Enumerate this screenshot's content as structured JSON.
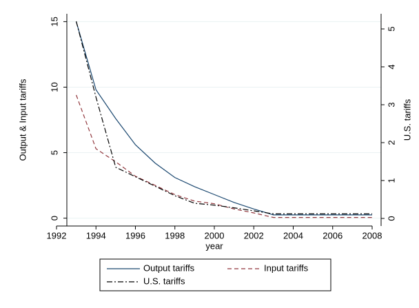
{
  "chart_data": {
    "type": "line",
    "x_label": "year",
    "y_label": "Output & Input tariffs",
    "y2_label": "U.S. tariffs",
    "x": [
      1993,
      1994,
      1995,
      1996,
      1997,
      1998,
      1999,
      2000,
      2001,
      2002,
      2003,
      2004,
      2005,
      2006,
      2007,
      2008
    ],
    "series": [
      {
        "name": "Output tariffs",
        "color": "#1a476f",
        "dash": "solid",
        "values": [
          15,
          9.8,
          7.6,
          5.6,
          4.2,
          3.1,
          2.4,
          1.8,
          1.2,
          0.7,
          0.25,
          0.25,
          0.25,
          0.25,
          0.25,
          0.25
        ]
      },
      {
        "name": "Input tariffs",
        "color": "#90353b",
        "dash": "dashed",
        "values": [
          9.4,
          5.3,
          4.3,
          3.2,
          2.5,
          1.8,
          1.3,
          1.1,
          0.7,
          0.4,
          0.05,
          0.05,
          0.05,
          0.05,
          0.05,
          0.05
        ]
      },
      {
        "name": "U.S. tariffs",
        "color": "#000000",
        "dash": "dashdot",
        "axis": "y2",
        "values": [
          5.2,
          3.2,
          1.35,
          1.1,
          0.85,
          0.6,
          0.4,
          0.35,
          0.28,
          0.2,
          0.12,
          0.12,
          0.12,
          0.12,
          0.12,
          0.12
        ]
      }
    ],
    "xlim": [
      1992,
      2008
    ],
    "xticks": [
      1992,
      1994,
      1996,
      1998,
      2000,
      2002,
      2004,
      2006,
      2008
    ],
    "ylim": [
      -0.6,
      15.6
    ],
    "yticks": [
      0,
      5,
      10,
      15
    ],
    "y2lim": [
      -0.2,
      5.4
    ],
    "y2ticks": [
      0,
      1,
      2,
      3,
      4,
      5
    ],
    "grid": true,
    "legend": "bottom"
  }
}
